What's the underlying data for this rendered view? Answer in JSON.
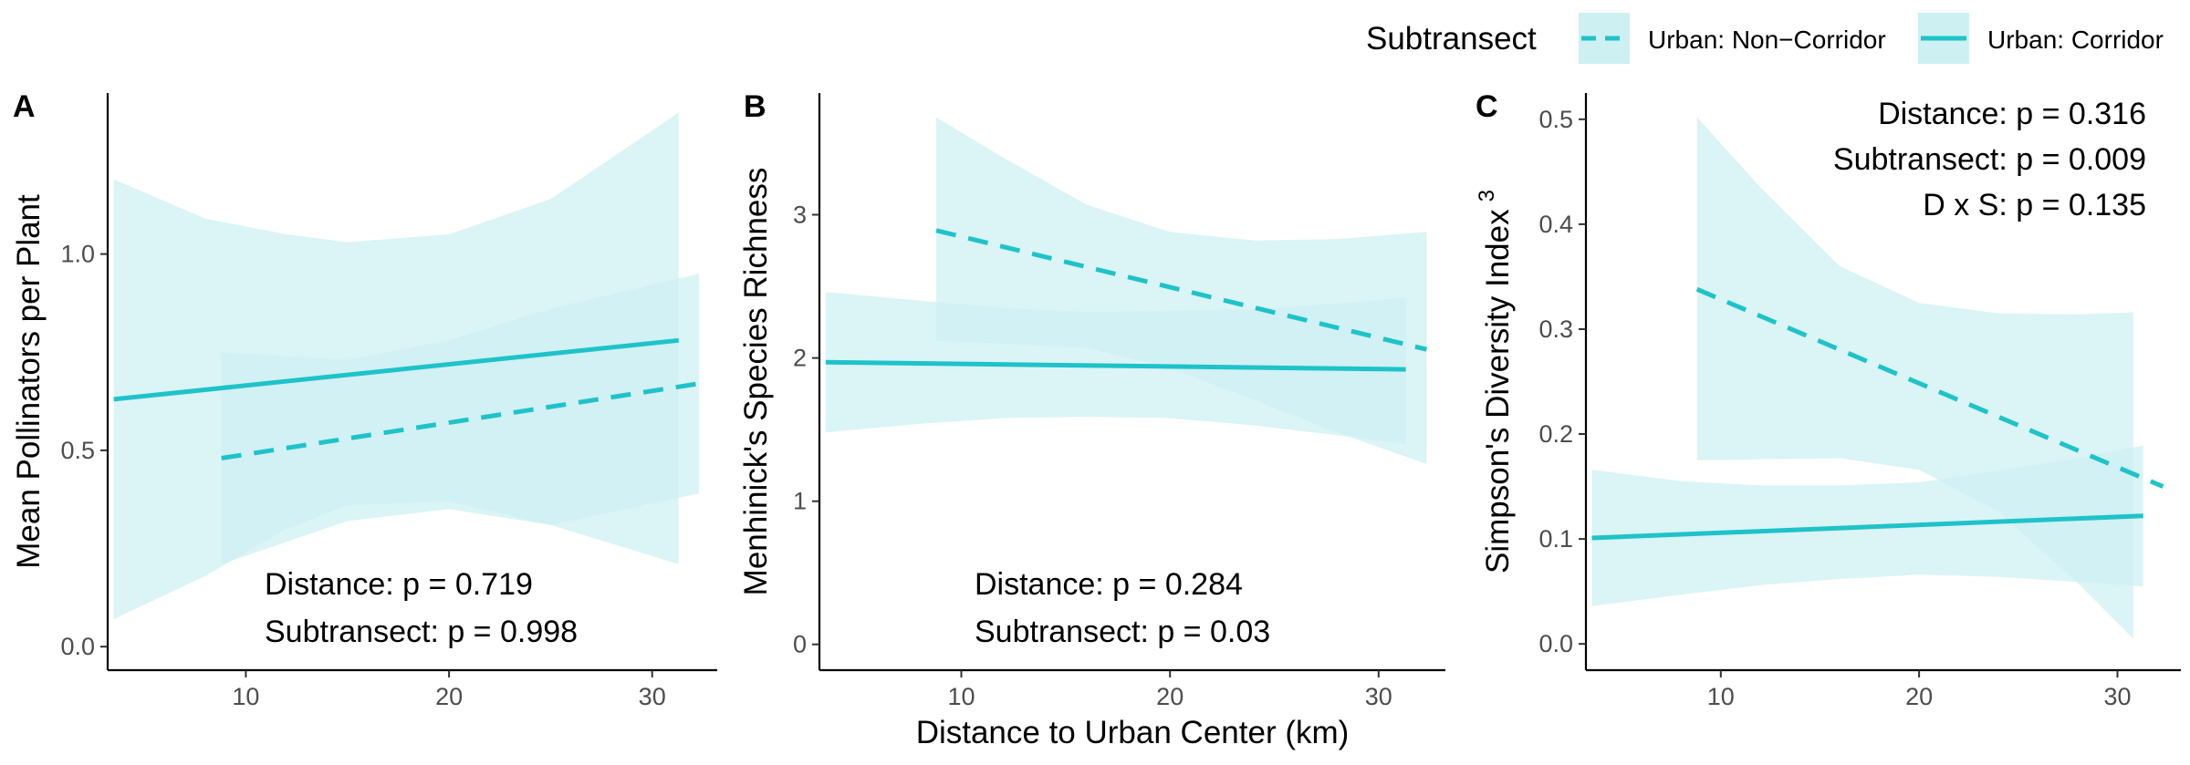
{
  "chart_data": [
    {
      "type": "line",
      "tag": "A",
      "ylabel": "Mean Pollinators per Plant",
      "xlabel": "",
      "xlim": [
        3.2,
        33.2
      ],
      "ylim": [
        -0.06,
        1.41
      ],
      "xticks": [
        10,
        20,
        30
      ],
      "yticks": [
        0.0,
        0.5,
        1.0
      ],
      "ytick_labels": [
        "0.0",
        "0.5",
        "1.0"
      ],
      "annotations": [
        "Distance: p = 0.719",
        "Subtransect: p = 0.998"
      ],
      "annotation_align": "bottom-center",
      "series": [
        {
          "name": "Urban: Non−Corridor",
          "style": "dashed",
          "x": [
            8.8,
            32.3
          ],
          "y": [
            0.48,
            0.67
          ],
          "ci_x": [
            8.8,
            15,
            20,
            25,
            32.3
          ],
          "ci_lower": [
            0.21,
            0.32,
            0.35,
            0.31,
            0.39
          ],
          "ci_upper": [
            0.75,
            0.73,
            0.78,
            0.86,
            0.95
          ]
        },
        {
          "name": "Urban: Corridor",
          "style": "solid",
          "x": [
            3.5,
            31.3
          ],
          "y": [
            0.63,
            0.78
          ],
          "ci_x": [
            3.5,
            8,
            12,
            15,
            20,
            25,
            31.3
          ],
          "ci_lower": [
            0.07,
            0.18,
            0.3,
            0.36,
            0.37,
            0.31,
            0.21
          ],
          "ci_upper": [
            1.19,
            1.09,
            1.05,
            1.03,
            1.05,
            1.14,
            1.36
          ]
        }
      ]
    },
    {
      "type": "line",
      "tag": "B",
      "ylabel": "Menhinick's Species Richness",
      "xlabel": "Distance to Urban Center (km)",
      "xlim": [
        3.2,
        33.2
      ],
      "ylim": [
        -0.18,
        3.85
      ],
      "xticks": [
        10,
        20,
        30
      ],
      "yticks": [
        0,
        1,
        2,
        3
      ],
      "ytick_labels": [
        "0",
        "1",
        "2",
        "3"
      ],
      "annotations": [
        "Distance: p = 0.284",
        "Subtransect: p = 0.03"
      ],
      "annotation_align": "bottom-center",
      "series": [
        {
          "name": "Urban: Non−Corridor",
          "style": "dashed",
          "x": [
            8.8,
            32.3
          ],
          "y": [
            2.89,
            2.06
          ],
          "ci_x": [
            8.8,
            12,
            16,
            20,
            24,
            28,
            32.3
          ],
          "ci_lower": [
            2.12,
            2.1,
            2.07,
            1.93,
            1.71,
            1.48,
            1.26
          ],
          "ci_upper": [
            3.68,
            3.4,
            3.07,
            2.88,
            2.82,
            2.83,
            2.88
          ]
        },
        {
          "name": "Urban: Corridor",
          "style": "solid",
          "x": [
            3.5,
            31.3
          ],
          "y": [
            1.97,
            1.92
          ],
          "ci_x": [
            3.5,
            8,
            12,
            16,
            20,
            24,
            28,
            31.3
          ],
          "ci_lower": [
            1.48,
            1.54,
            1.58,
            1.59,
            1.58,
            1.53,
            1.46,
            1.4
          ],
          "ci_upper": [
            2.46,
            2.4,
            2.35,
            2.32,
            2.33,
            2.34,
            2.38,
            2.42
          ]
        }
      ]
    },
    {
      "type": "line",
      "tag": "C",
      "ylabel": "Simpson's Diversity Index",
      "ylabel_sup": "3",
      "xlabel": "",
      "xlim": [
        3.2,
        33.2
      ],
      "ylim": [
        -0.025,
        0.525
      ],
      "xticks": [
        10,
        20,
        30
      ],
      "yticks": [
        0.0,
        0.1,
        0.2,
        0.3,
        0.4,
        0.5
      ],
      "ytick_labels": [
        "0.0",
        "0.1",
        "0.2",
        "0.3",
        "0.4",
        "0.5"
      ],
      "annotations": [
        "Distance: p = 0.316",
        "Subtransect: p = 0.009",
        "D x S: p = 0.135"
      ],
      "annotation_align": "top-right",
      "series": [
        {
          "name": "Urban: Non−Corridor",
          "style": "dashed",
          "x": [
            8.8,
            32.3
          ],
          "y": [
            0.338,
            0.15
          ],
          "ci_x": [
            8.8,
            12,
            16,
            20,
            24,
            28,
            30.8
          ],
          "ci_lower": [
            0.175,
            0.176,
            0.177,
            0.166,
            0.126,
            0.058,
            0.005
          ],
          "ci_upper": [
            0.502,
            0.435,
            0.36,
            0.325,
            0.315,
            0.314,
            0.316
          ]
        },
        {
          "name": "Urban: Corridor",
          "style": "solid",
          "x": [
            3.5,
            31.3
          ],
          "y": [
            0.101,
            0.122
          ],
          "ci_x": [
            3.5,
            8,
            12,
            16,
            20,
            24,
            28,
            31.3
          ],
          "ci_lower": [
            0.036,
            0.047,
            0.056,
            0.062,
            0.066,
            0.064,
            0.059,
            0.055
          ],
          "ci_upper": [
            0.166,
            0.155,
            0.151,
            0.151,
            0.154,
            0.165,
            0.177,
            0.189
          ]
        }
      ]
    }
  ],
  "legend": {
    "title": "Subtransect",
    "placement": "top-right",
    "items": [
      {
        "label": "Urban: Non−Corridor",
        "style": "dashed"
      },
      {
        "label": "Urban: Corridor",
        "style": "solid"
      }
    ]
  },
  "colors": {
    "line": "#1ec3c9",
    "ribbon": "#cdf0f2",
    "axis": "#000000",
    "tick_text": "#4d4d4d"
  }
}
